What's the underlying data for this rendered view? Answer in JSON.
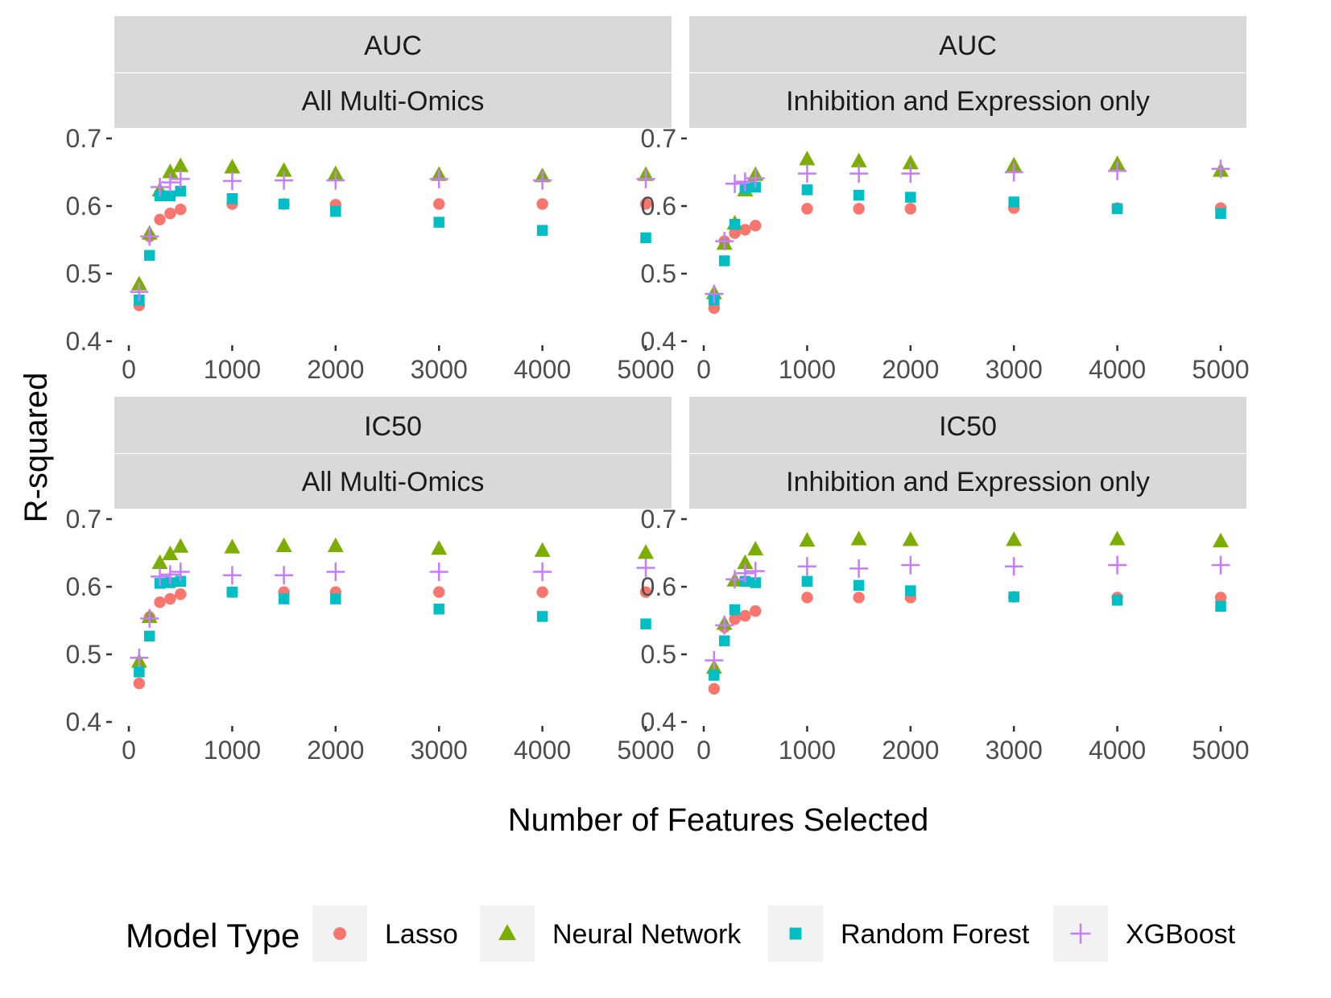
{
  "chart_data": {
    "type": "scatter",
    "xlabel": "Number of Features Selected",
    "ylabel": "R-squared",
    "xlim": [
      0,
      5000
    ],
    "ylim": [
      0.4,
      0.7
    ],
    "x_ticks": [
      "0",
      "1000",
      "2000",
      "3000",
      "4000",
      "5000"
    ],
    "y_ticks": [
      "0.4",
      "0.5",
      "0.6",
      "0.7"
    ],
    "x_tick_values": [
      0,
      1000,
      2000,
      3000,
      4000,
      5000
    ],
    "y_tick_values": [
      0.4,
      0.5,
      0.6,
      0.7
    ],
    "x": [
      100,
      200,
      300,
      400,
      500,
      1000,
      1500,
      2000,
      3000,
      4000,
      5000
    ],
    "legend": {
      "title": "Model Type",
      "position": "bottom",
      "entries": [
        "Lasso",
        "Neural Network",
        "Random Forest",
        "XGBoost"
      ]
    },
    "series_styles": [
      {
        "name": "Lasso",
        "color": "#F8766D",
        "shape": "circle"
      },
      {
        "name": "Neural Network",
        "color": "#7CAE00",
        "shape": "triangle"
      },
      {
        "name": "Random Forest",
        "color": "#00BFC4",
        "shape": "square"
      },
      {
        "name": "XGBoost",
        "color": "#C77CFF",
        "shape": "plus"
      }
    ],
    "panels": [
      {
        "strip_top": "AUC",
        "strip_bottom": "All Multi-Omics",
        "series": [
          {
            "name": "Lasso",
            "values": [
              0.453,
              0.555,
              0.58,
              0.589,
              0.595,
              0.603,
              0.603,
              0.602,
              0.603,
              0.603,
              0.603
            ]
          },
          {
            "name": "Neural Network",
            "values": [
              0.484,
              0.559,
              0.623,
              0.65,
              0.659,
              0.657,
              0.652,
              0.647,
              0.646,
              0.644,
              0.646
            ]
          },
          {
            "name": "Random Forest",
            "values": [
              0.461,
              0.527,
              0.615,
              0.615,
              0.622,
              0.611,
              0.603,
              0.592,
              0.576,
              0.564,
              0.553
            ]
          },
          {
            "name": "XGBoost",
            "values": [
              0.473,
              0.555,
              0.628,
              0.635,
              0.64,
              0.637,
              0.638,
              0.638,
              0.64,
              0.638,
              0.64
            ]
          }
        ]
      },
      {
        "strip_top": "AUC",
        "strip_bottom": "Inhibition and Expression only",
        "series": [
          {
            "name": "Lasso",
            "values": [
              0.449,
              0.548,
              0.56,
              0.565,
              0.571,
              0.596,
              0.596,
              0.596,
              0.597,
              0.597,
              0.597
            ]
          },
          {
            "name": "Neural Network",
            "values": [
              0.471,
              0.544,
              0.574,
              0.623,
              0.646,
              0.669,
              0.666,
              0.663,
              0.66,
              0.662,
              0.652
            ]
          },
          {
            "name": "Random Forest",
            "values": [
              0.461,
              0.519,
              0.573,
              0.626,
              0.628,
              0.624,
              0.616,
              0.613,
              0.606,
              0.596,
              0.589
            ]
          },
          {
            "name": "XGBoost",
            "values": [
              0.47,
              0.548,
              0.633,
              0.636,
              0.641,
              0.648,
              0.648,
              0.648,
              0.65,
              0.652,
              0.655
            ]
          }
        ]
      },
      {
        "strip_top": "IC50",
        "strip_bottom": "All Multi-Omics",
        "series": [
          {
            "name": "Lasso",
            "values": [
              0.457,
              0.555,
              0.577,
              0.582,
              0.589,
              0.592,
              0.592,
              0.592,
              0.592,
              0.592,
              0.592
            ]
          },
          {
            "name": "Neural Network",
            "values": [
              0.489,
              0.555,
              0.635,
              0.648,
              0.659,
              0.658,
              0.66,
              0.66,
              0.656,
              0.653,
              0.65
            ]
          },
          {
            "name": "Random Forest",
            "values": [
              0.474,
              0.527,
              0.605,
              0.606,
              0.608,
              0.592,
              0.582,
              0.582,
              0.567,
              0.556,
              0.545
            ]
          },
          {
            "name": "XGBoost",
            "values": [
              0.495,
              0.553,
              0.615,
              0.618,
              0.622,
              0.617,
              0.617,
              0.622,
              0.622,
              0.622,
              0.628
            ]
          }
        ]
      },
      {
        "strip_top": "IC50",
        "strip_bottom": "Inhibition and Expression only",
        "series": [
          {
            "name": "Lasso",
            "values": [
              0.449,
              0.54,
              0.552,
              0.557,
              0.564,
              0.584,
              0.584,
              0.584,
              0.585,
              0.584,
              0.584
            ]
          },
          {
            "name": "Neural Network",
            "values": [
              0.48,
              0.545,
              0.609,
              0.635,
              0.655,
              0.668,
              0.67,
              0.669,
              0.669,
              0.67,
              0.667
            ]
          },
          {
            "name": "Random Forest",
            "values": [
              0.469,
              0.52,
              0.566,
              0.608,
              0.606,
              0.608,
              0.602,
              0.594,
              0.585,
              0.58,
              0.571
            ]
          },
          {
            "name": "XGBoost",
            "values": [
              0.491,
              0.543,
              0.611,
              0.62,
              0.623,
              0.63,
              0.627,
              0.632,
              0.63,
              0.632,
              0.632
            ]
          }
        ]
      }
    ]
  }
}
